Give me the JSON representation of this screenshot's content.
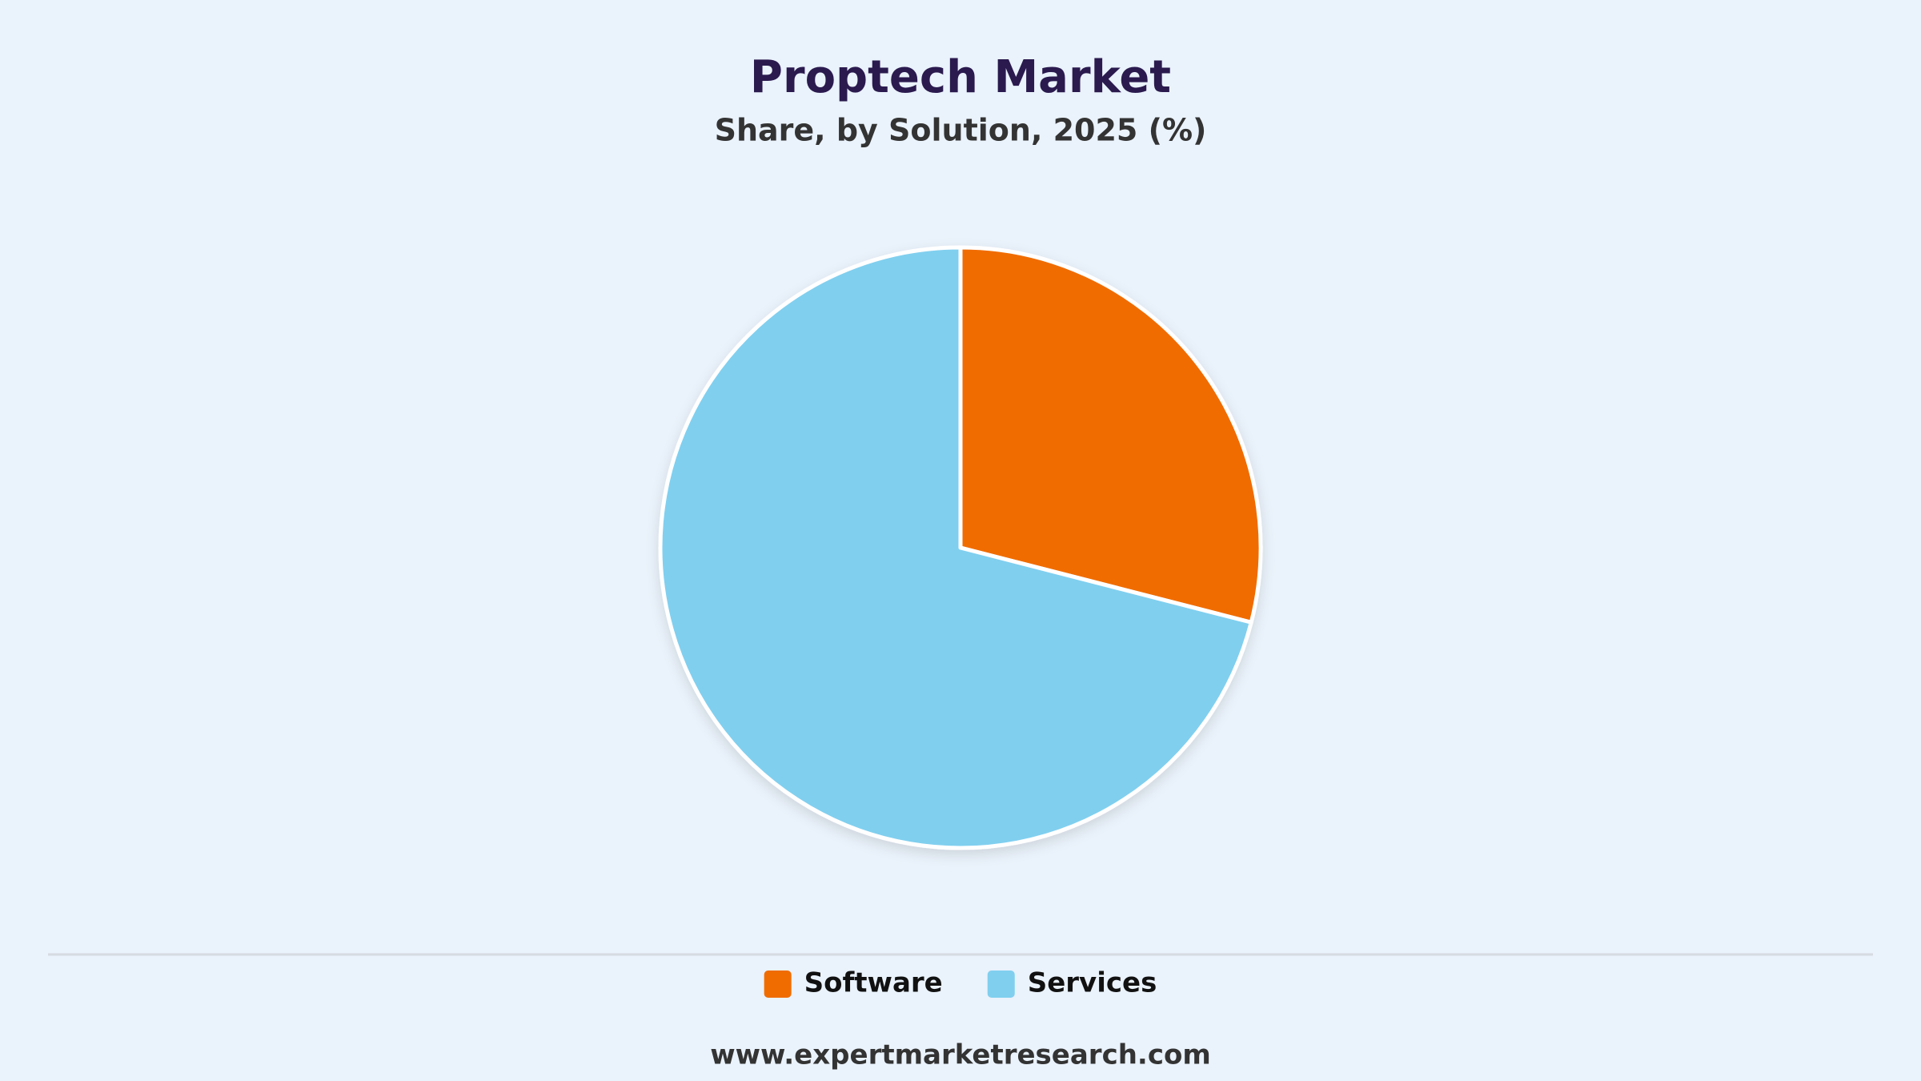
{
  "chart_data": {
    "type": "pie",
    "title": "Proptech Market",
    "subtitle": "Share, by Solution, 2025 (%)",
    "categories": [
      "Software",
      "Services"
    ],
    "values": [
      29,
      71
    ],
    "colors": [
      "#f06c00",
      "#80cfef"
    ],
    "source": "www.expertmarketresearch.com"
  }
}
